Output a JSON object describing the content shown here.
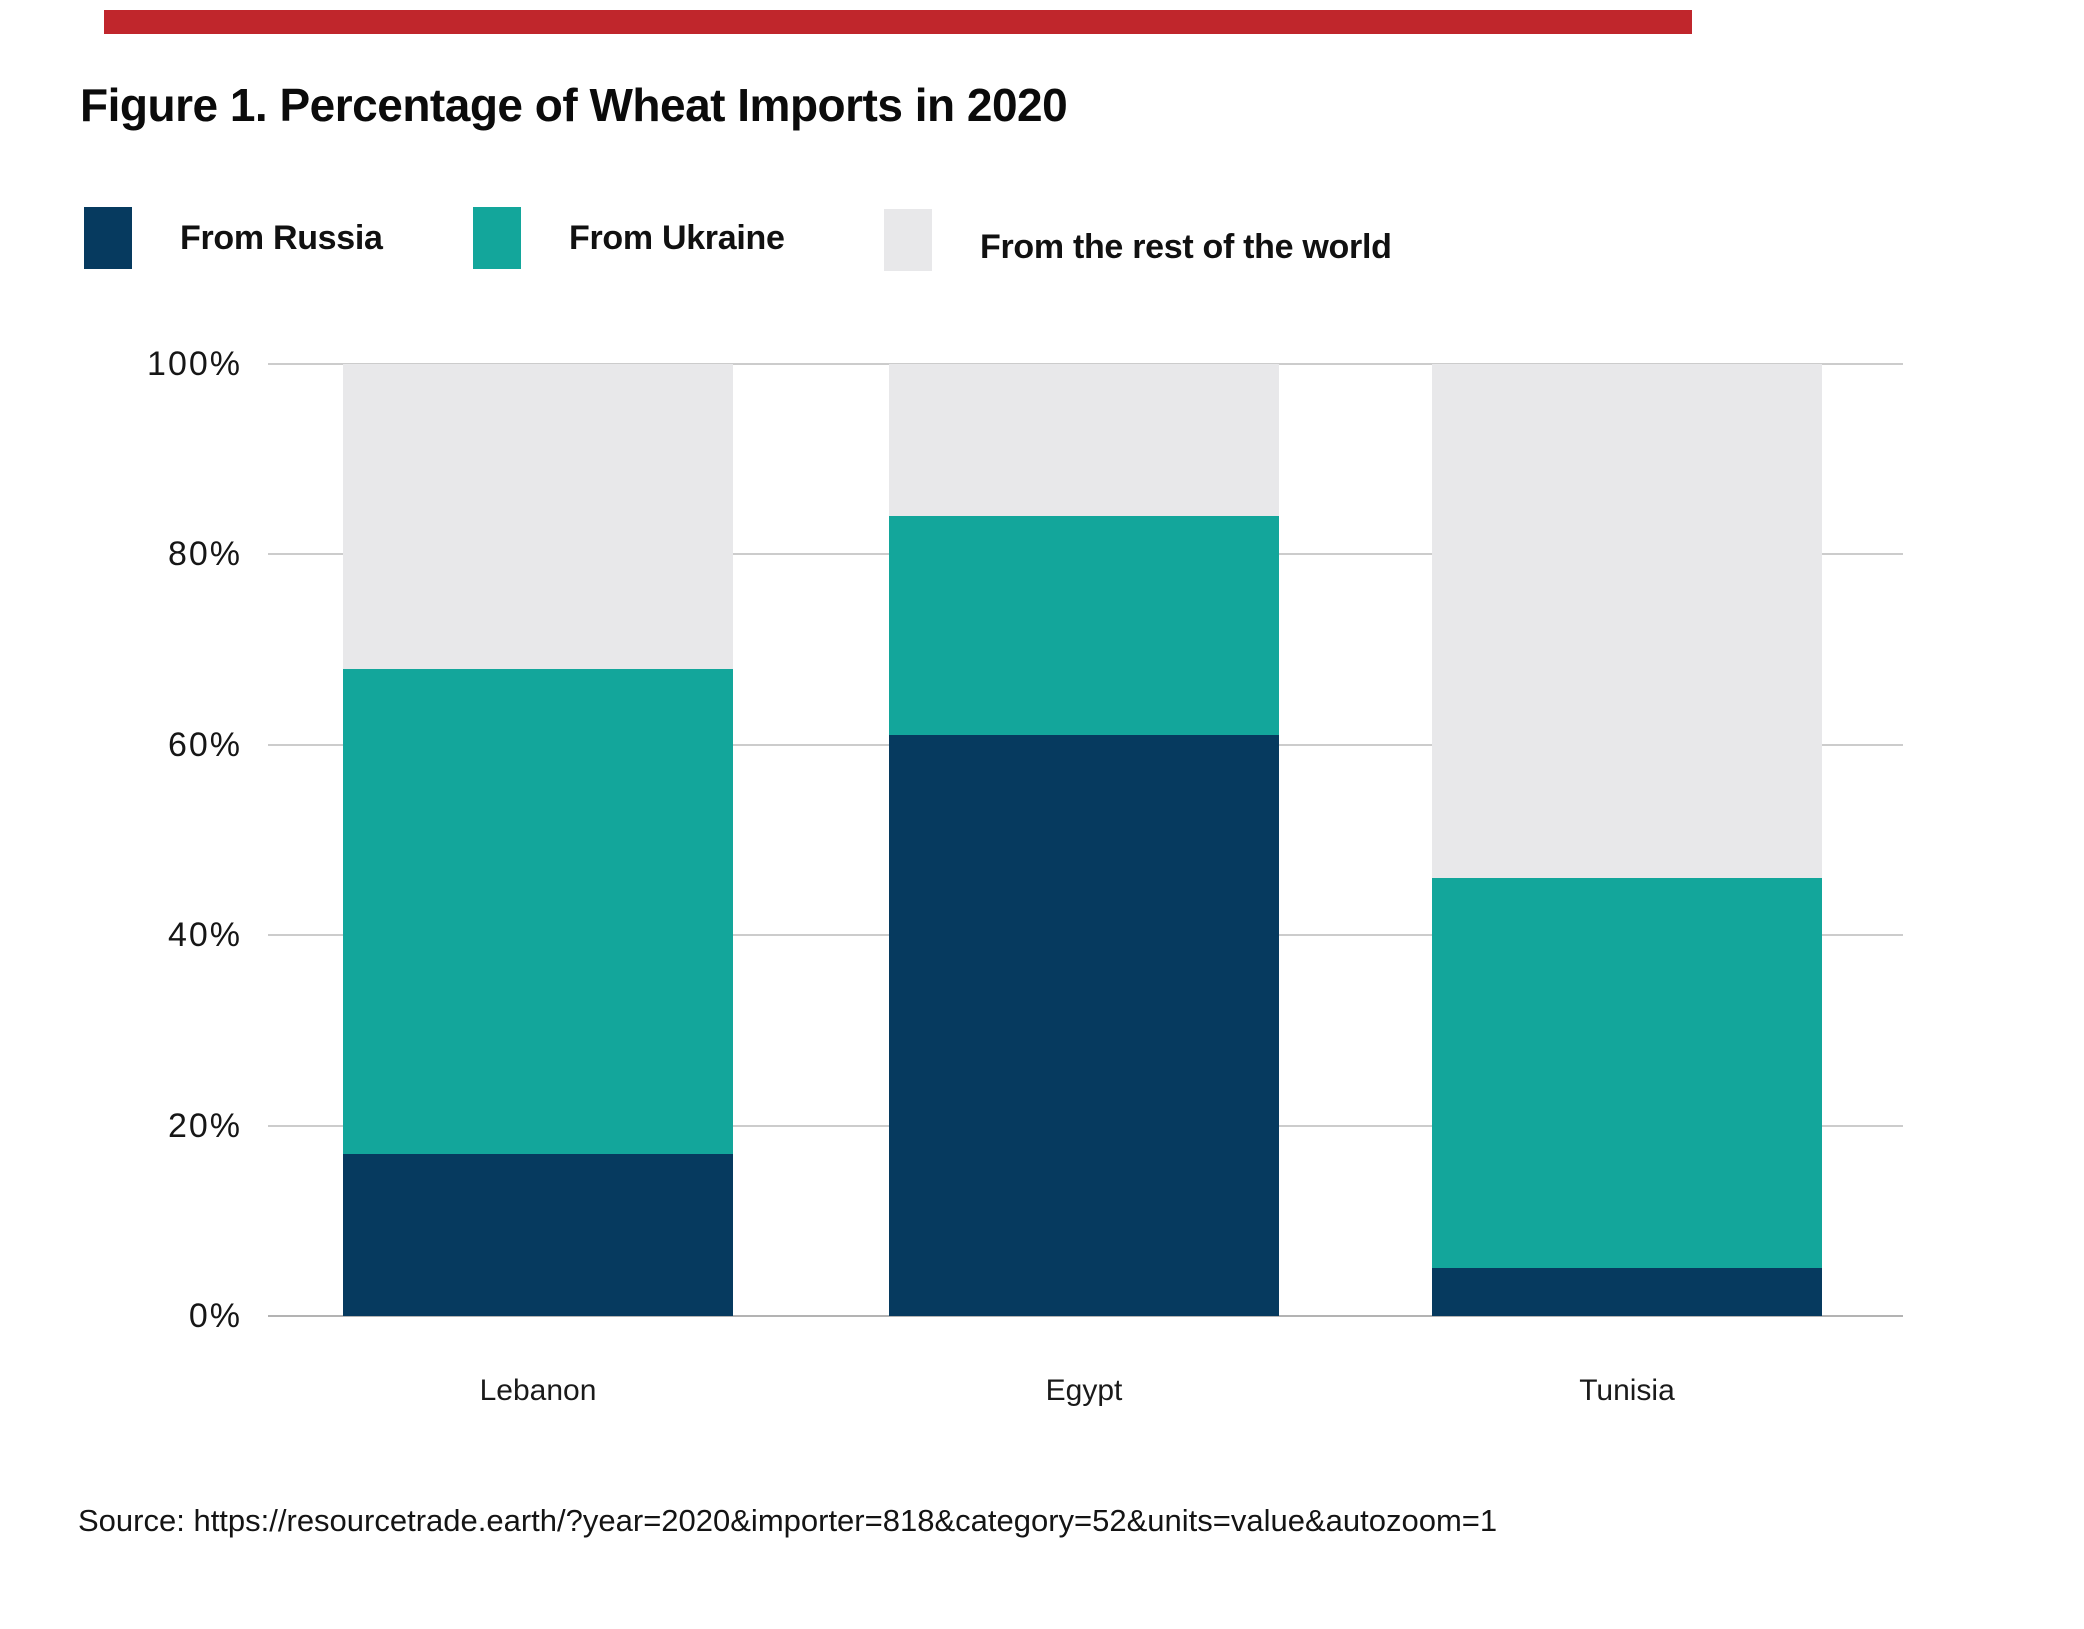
{
  "accent_bar_color": "#c0262c",
  "title": "Figure 1. Percentage of Wheat Imports in 2020",
  "legend": {
    "position": "top",
    "items": [
      {
        "label": "From Russia",
        "color": "#063a5f"
      },
      {
        "label": "From Ukraine",
        "color": "#13a69b"
      },
      {
        "label": "From the rest of the world",
        "color": "#e8e8ea"
      }
    ]
  },
  "chart_data": {
    "type": "bar",
    "subtype": "stacked-percentage",
    "title": "Figure 1. Percentage of Wheat Imports in 2020",
    "categories": [
      "Lebanon",
      "Egypt",
      "Tunisia"
    ],
    "series": [
      {
        "name": "From Russia",
        "color": "#063a5f",
        "values": [
          17,
          61,
          5
        ]
      },
      {
        "name": "From Ukraine",
        "color": "#13a69b",
        "values": [
          51,
          23,
          41
        ]
      },
      {
        "name": "From the rest of the world",
        "color": "#e8e8ea",
        "values": [
          32,
          16,
          54
        ]
      }
    ],
    "xlabel": "",
    "ylabel": "",
    "ylim": [
      0,
      100
    ],
    "yticks": [
      "0%",
      "20%",
      "40%",
      "60%",
      "80%",
      "100%"
    ],
    "grid": "horizontal",
    "gridline_color": "#cccccc",
    "baseline_color": "#b3b3b3",
    "legend_position": "top"
  },
  "source": "Source: https://resourcetrade.earth/?year=2020&importer=818&category=52&units=value&autozoom=1"
}
